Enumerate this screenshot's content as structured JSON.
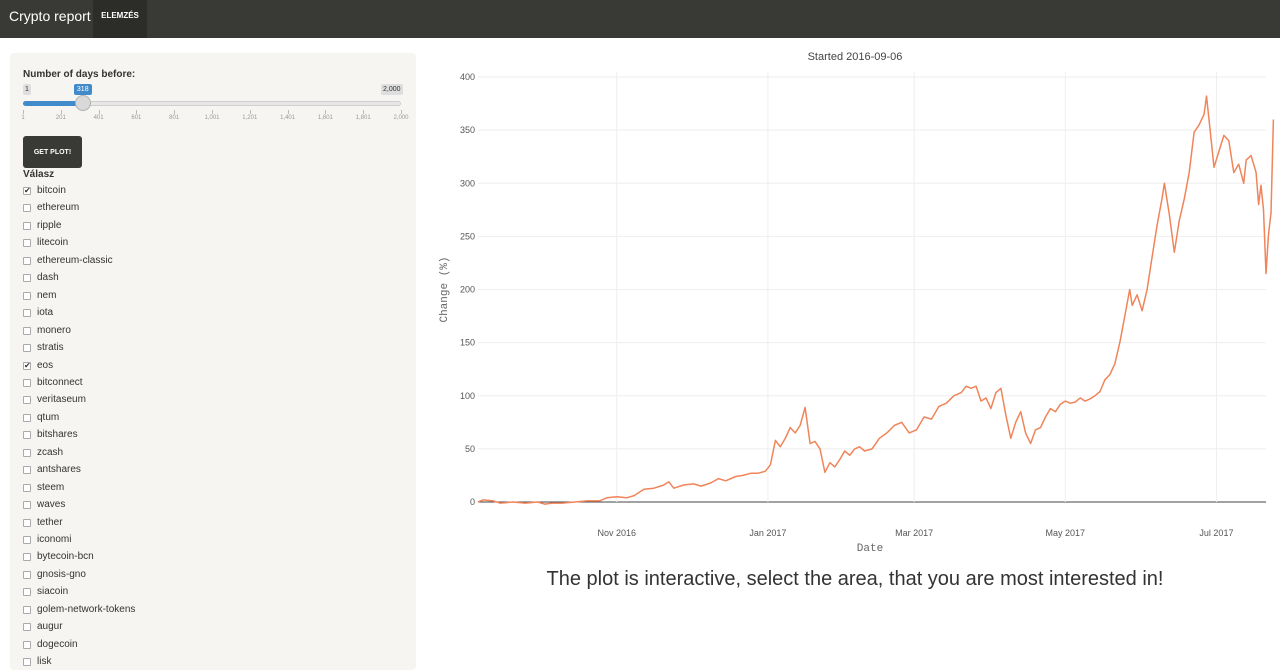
{
  "navbar": {
    "brand": "Crypto report",
    "tab": "ELEMZÉS"
  },
  "sidebar": {
    "slider_label": "Number of days before:",
    "slider_min": "1",
    "slider_max": "2,000",
    "slider_value": "318",
    "slider_value_fraction": 0.1585,
    "slider_ticks": [
      "1",
      "201",
      "401",
      "601",
      "801",
      "1,001",
      "1,201",
      "1,401",
      "1,601",
      "1,801",
      "2,000"
    ],
    "button_label": "GET PLOT!",
    "checkbox_title": "Válasz",
    "coins": [
      {
        "label": "bitcoin",
        "checked": true
      },
      {
        "label": "ethereum",
        "checked": false
      },
      {
        "label": "ripple",
        "checked": false
      },
      {
        "label": "litecoin",
        "checked": false
      },
      {
        "label": "ethereum-classic",
        "checked": false
      },
      {
        "label": "dash",
        "checked": false
      },
      {
        "label": "nem",
        "checked": false
      },
      {
        "label": "iota",
        "checked": false
      },
      {
        "label": "monero",
        "checked": false
      },
      {
        "label": "stratis",
        "checked": false
      },
      {
        "label": "eos",
        "checked": true
      },
      {
        "label": "bitconnect",
        "checked": false
      },
      {
        "label": "veritaseum",
        "checked": false
      },
      {
        "label": "qtum",
        "checked": false
      },
      {
        "label": "bitshares",
        "checked": false
      },
      {
        "label": "zcash",
        "checked": false
      },
      {
        "label": "antshares",
        "checked": false
      },
      {
        "label": "steem",
        "checked": false
      },
      {
        "label": "waves",
        "checked": false
      },
      {
        "label": "tether",
        "checked": false
      },
      {
        "label": "iconomi",
        "checked": false
      },
      {
        "label": "bytecoin-bcn",
        "checked": false
      },
      {
        "label": "gnosis-gno",
        "checked": false
      },
      {
        "label": "siacoin",
        "checked": false
      },
      {
        "label": "golem-network-tokens",
        "checked": false
      },
      {
        "label": "augur",
        "checked": false
      },
      {
        "label": "dogecoin",
        "checked": false
      },
      {
        "label": "lisk",
        "checked": false
      }
    ]
  },
  "main": {
    "caption": "The plot is interactive, select the area, that you are most interested in!"
  },
  "chart_data": {
    "type": "line",
    "title": "Started 2016-09-06",
    "xlabel": "Date",
    "ylabel": "Change (%)",
    "ylim": [
      0,
      400
    ],
    "yticks": [
      0,
      50,
      100,
      150,
      200,
      250,
      300,
      350,
      400
    ],
    "xticks": [
      "Nov 2016",
      "Jan 2017",
      "Mar 2017",
      "May 2017",
      "Jul 2017"
    ],
    "xtick_dates": [
      "2016-11-01",
      "2017-01-01",
      "2017-03-01",
      "2017-05-01",
      "2017-07-01"
    ],
    "xrange": [
      "2016-09-06",
      "2017-07-21"
    ],
    "grid": true,
    "line_color": "#f0845a",
    "series": [
      {
        "points": [
          [
            "2016-09-06",
            0
          ],
          [
            "2016-09-08",
            2
          ],
          [
            "2016-09-12",
            1
          ],
          [
            "2016-09-15",
            -1
          ],
          [
            "2016-09-20",
            0
          ],
          [
            "2016-09-25",
            -1
          ],
          [
            "2016-09-30",
            0
          ],
          [
            "2016-10-03",
            -2
          ],
          [
            "2016-10-06",
            -1
          ],
          [
            "2016-10-10",
            -1
          ],
          [
            "2016-10-15",
            0
          ],
          [
            "2016-10-20",
            1
          ],
          [
            "2016-10-25",
            1
          ],
          [
            "2016-10-28",
            4
          ],
          [
            "2016-11-01",
            5
          ],
          [
            "2016-11-05",
            4
          ],
          [
            "2016-11-08",
            6
          ],
          [
            "2016-11-12",
            12
          ],
          [
            "2016-11-16",
            13
          ],
          [
            "2016-11-20",
            16
          ],
          [
            "2016-11-22",
            19
          ],
          [
            "2016-11-24",
            13
          ],
          [
            "2016-11-28",
            16
          ],
          [
            "2016-12-02",
            17
          ],
          [
            "2016-12-05",
            15
          ],
          [
            "2016-12-09",
            18
          ],
          [
            "2016-12-12",
            22
          ],
          [
            "2016-12-15",
            20
          ],
          [
            "2016-12-19",
            24
          ],
          [
            "2016-12-22",
            25
          ],
          [
            "2016-12-25",
            27
          ],
          [
            "2016-12-28",
            27
          ],
          [
            "2016-12-31",
            29
          ],
          [
            "2017-01-02",
            35
          ],
          [
            "2017-01-04",
            58
          ],
          [
            "2017-01-06",
            52
          ],
          [
            "2017-01-08",
            60
          ],
          [
            "2017-01-10",
            70
          ],
          [
            "2017-01-12",
            65
          ],
          [
            "2017-01-14",
            72
          ],
          [
            "2017-01-16",
            89
          ],
          [
            "2017-01-18",
            55
          ],
          [
            "2017-01-20",
            57
          ],
          [
            "2017-01-22",
            50
          ],
          [
            "2017-01-24",
            28
          ],
          [
            "2017-01-26",
            37
          ],
          [
            "2017-01-28",
            33
          ],
          [
            "2017-01-30",
            40
          ],
          [
            "2017-02-01",
            48
          ],
          [
            "2017-02-03",
            44
          ],
          [
            "2017-02-05",
            50
          ],
          [
            "2017-02-07",
            52
          ],
          [
            "2017-02-09",
            48
          ],
          [
            "2017-02-12",
            50
          ],
          [
            "2017-02-15",
            60
          ],
          [
            "2017-02-18",
            65
          ],
          [
            "2017-02-21",
            72
          ],
          [
            "2017-02-24",
            75
          ],
          [
            "2017-02-27",
            65
          ],
          [
            "2017-03-02",
            68
          ],
          [
            "2017-03-05",
            80
          ],
          [
            "2017-03-08",
            78
          ],
          [
            "2017-03-11",
            90
          ],
          [
            "2017-03-14",
            93
          ],
          [
            "2017-03-17",
            100
          ],
          [
            "2017-03-20",
            103
          ],
          [
            "2017-03-22",
            109
          ],
          [
            "2017-03-24",
            107
          ],
          [
            "2017-03-26",
            109
          ],
          [
            "2017-03-28",
            95
          ],
          [
            "2017-03-30",
            98
          ],
          [
            "2017-04-01",
            88
          ],
          [
            "2017-04-03",
            103
          ],
          [
            "2017-04-05",
            107
          ],
          [
            "2017-04-07",
            82
          ],
          [
            "2017-04-09",
            60
          ],
          [
            "2017-04-11",
            75
          ],
          [
            "2017-04-13",
            85
          ],
          [
            "2017-04-15",
            65
          ],
          [
            "2017-04-17",
            55
          ],
          [
            "2017-04-19",
            68
          ],
          [
            "2017-04-21",
            70
          ],
          [
            "2017-04-23",
            80
          ],
          [
            "2017-04-25",
            88
          ],
          [
            "2017-04-27",
            85
          ],
          [
            "2017-04-29",
            92
          ],
          [
            "2017-05-01",
            95
          ],
          [
            "2017-05-03",
            93
          ],
          [
            "2017-05-05",
            94
          ],
          [
            "2017-05-07",
            98
          ],
          [
            "2017-05-09",
            95
          ],
          [
            "2017-05-11",
            97
          ],
          [
            "2017-05-13",
            100
          ],
          [
            "2017-05-15",
            104
          ],
          [
            "2017-05-17",
            115
          ],
          [
            "2017-05-19",
            120
          ],
          [
            "2017-05-21",
            130
          ],
          [
            "2017-05-23",
            150
          ],
          [
            "2017-05-25",
            175
          ],
          [
            "2017-05-27",
            200
          ],
          [
            "2017-05-28",
            185
          ],
          [
            "2017-05-30",
            195
          ],
          [
            "2017-06-01",
            180
          ],
          [
            "2017-06-03",
            200
          ],
          [
            "2017-06-05",
            230
          ],
          [
            "2017-06-07",
            260
          ],
          [
            "2017-06-09",
            285
          ],
          [
            "2017-06-10",
            300
          ],
          [
            "2017-06-12",
            270
          ],
          [
            "2017-06-14",
            235
          ],
          [
            "2017-06-16",
            265
          ],
          [
            "2017-06-18",
            285
          ],
          [
            "2017-06-20",
            310
          ],
          [
            "2017-06-22",
            348
          ],
          [
            "2017-06-24",
            355
          ],
          [
            "2017-06-26",
            365
          ],
          [
            "2017-06-27",
            382
          ],
          [
            "2017-06-28",
            360
          ],
          [
            "2017-06-30",
            315
          ],
          [
            "2017-07-02",
            330
          ],
          [
            "2017-07-04",
            345
          ],
          [
            "2017-07-06",
            340
          ],
          [
            "2017-07-08",
            310
          ],
          [
            "2017-07-10",
            318
          ],
          [
            "2017-07-12",
            300
          ],
          [
            "2017-07-13",
            322
          ],
          [
            "2017-07-15",
            326
          ],
          [
            "2017-07-17",
            310
          ],
          [
            "2017-07-18",
            280
          ],
          [
            "2017-07-19",
            298
          ],
          [
            "2017-07-20",
            275
          ],
          [
            "2017-07-21",
            215
          ],
          [
            "2017-07-22",
            252
          ],
          [
            "2017-07-23",
            272
          ],
          [
            "2017-07-24",
            360
          ]
        ]
      }
    ]
  }
}
